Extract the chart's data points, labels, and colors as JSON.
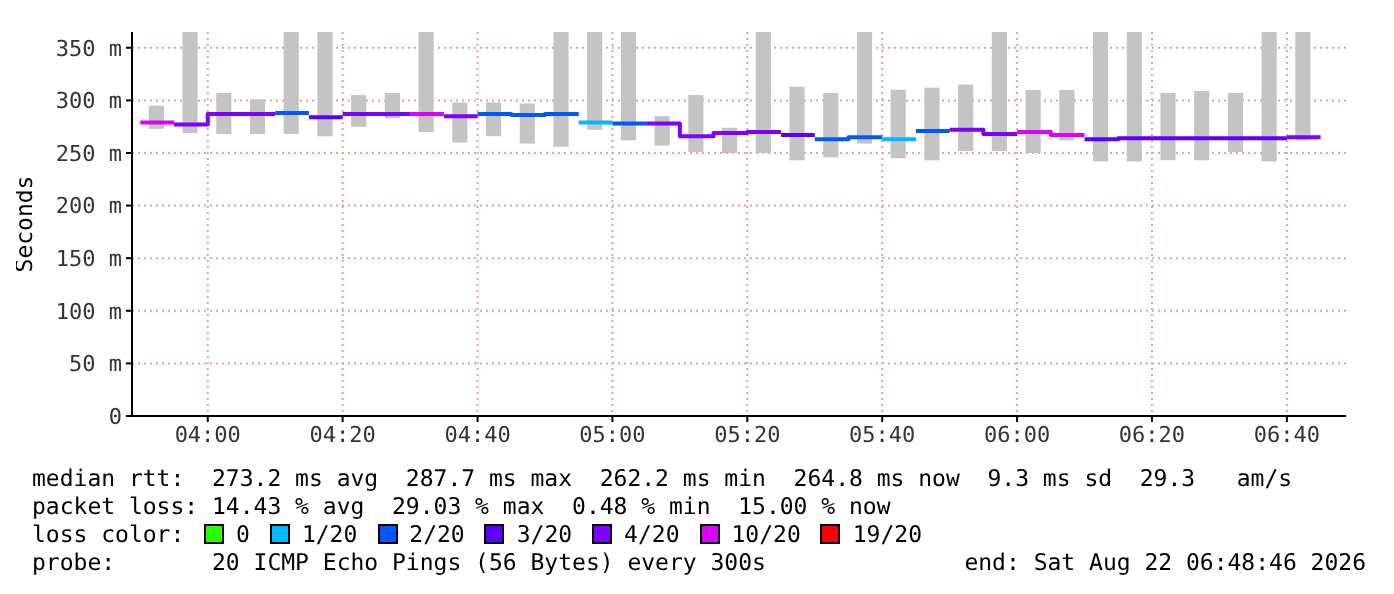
{
  "chart_data": {
    "type": "line",
    "ylabel": "Seconds",
    "legend_title": "loss color:",
    "legend": "bottom",
    "grid": true,
    "xlim": [
      3.8128,
      6.8128
    ],
    "xticks": [
      {
        "value": 4,
        "label": "04:00"
      },
      {
        "value": 4.3333,
        "label": "04:20"
      },
      {
        "value": 4.6667,
        "label": "04:40"
      },
      {
        "value": 5,
        "label": "05:00"
      },
      {
        "value": 5.3333,
        "label": "05:20"
      },
      {
        "value": 5.6667,
        "label": "05:40"
      },
      {
        "value": 6,
        "label": "06:00"
      },
      {
        "value": 6.3333,
        "label": "06:20"
      },
      {
        "value": 6.6667,
        "label": "06:40"
      }
    ],
    "ylim": [
      0,
      365
    ],
    "yticks": [
      0,
      {
        "value": 50,
        "label": "50 m"
      },
      {
        "value": 100,
        "label": "100 m"
      },
      {
        "value": 150,
        "label": "150 m"
      },
      {
        "value": 200,
        "label": "200 m"
      },
      {
        "value": 250,
        "label": "250 m"
      },
      {
        "value": 300,
        "label": "300 m"
      },
      {
        "value": 350,
        "label": "350 m"
      }
    ],
    "series": [
      {
        "type": "bar",
        "color": "#c4c4c4",
        "x": [
          3.875,
          3.9583,
          4.0417,
          4.125,
          4.2083,
          4.2917,
          4.375,
          4.4583,
          4.5417,
          4.625,
          4.7083,
          4.7917,
          4.875,
          4.9583,
          5.0417,
          5.125,
          5.2083,
          5.2917,
          5.375,
          5.4583,
          5.5417,
          5.625,
          5.7083,
          5.7917,
          5.875,
          5.9583,
          6.0417,
          6.125,
          6.2083,
          6.2917,
          6.375,
          6.4583,
          6.5417,
          6.625,
          6.7083
        ],
        "base": [
          273,
          269,
          268,
          268,
          268,
          266,
          275,
          283,
          270,
          260,
          266,
          259,
          256,
          272,
          262,
          257,
          251,
          250,
          250,
          243,
          246,
          259,
          245,
          243,
          252,
          252,
          250,
          262,
          242,
          242,
          243,
          243,
          251,
          242,
          262
        ],
        "values": [
          22,
          96,
          39,
          33,
          97,
          99,
          30,
          24,
          95,
          38,
          32,
          38,
          109,
          93,
          103,
          28,
          54,
          24,
          115,
          70,
          61,
          106,
          65,
          69,
          63,
          113,
          60,
          48,
          123,
          123,
          64,
          66,
          56,
          123,
          103
        ]
      },
      {
        "name": "0",
        "color": "#26ff00"
      },
      {
        "name": "1/20",
        "color": "#00b8ff",
        "x": [
          4.9167,
          5.0,
          5.6667,
          5.75
        ],
        "values": [
          279,
          279,
          263,
          263
        ]
      },
      {
        "name": "2/20",
        "color": "#0059ff",
        "x": [
          4.1667,
          4.25,
          4.6667,
          4.75,
          4.75,
          4.8333,
          4.8333,
          4.9167,
          5.0,
          5.0833,
          5.5,
          5.5833,
          5.5833,
          5.6667,
          5.75,
          5.8333
        ],
        "values": [
          288,
          288,
          287,
          287,
          286,
          286,
          287,
          287,
          278,
          278,
          263,
          263,
          265,
          265,
          271,
          271
        ]
      },
      {
        "name": "3/20",
        "color": "#5e00ff",
        "x": [
          4.25,
          4.3333,
          5.4167,
          5.5,
          6.1667,
          6.25,
          6.25,
          6.3333,
          6.3333,
          6.4167,
          6.4167,
          6.5,
          6.5,
          6.5833,
          6.5833,
          6.6667
        ],
        "values": [
          284,
          284,
          267,
          267,
          263,
          263,
          264,
          264,
          264,
          264,
          264,
          264,
          264,
          264,
          264,
          264
        ]
      },
      {
        "name": "4/20",
        "color": "#7e00ff",
        "x": [
          3.9167,
          4.0,
          4.0,
          4.0833,
          4.0833,
          4.1667,
          4.3333,
          4.4167,
          4.4167,
          4.5,
          4.5833,
          4.6667,
          5.0833,
          5.1667,
          5.1667,
          5.25,
          5.25,
          5.3333,
          5.3333,
          5.4167,
          5.8333,
          5.9167,
          5.9167,
          6.0,
          6.6667,
          6.75
        ],
        "values": [
          277,
          277,
          287,
          287,
          287,
          287,
          287,
          287,
          287,
          287,
          285,
          285,
          278,
          278,
          266,
          266,
          269,
          269,
          270,
          270,
          272,
          272,
          268,
          268,
          265,
          265
        ]
      },
      {
        "name": "10/20",
        "color": "#dd00ff",
        "x": [
          3.8333,
          3.9167,
          4.5,
          4.5833,
          6.0,
          6.0833,
          6.0833,
          6.1667
        ],
        "values": [
          279,
          279,
          287,
          287,
          270,
          270,
          267,
          267
        ]
      },
      {
        "name": "19/20",
        "color": "#ff0000"
      }
    ],
    "annotations": [
      "median rtt:  273.2 ms avg  287.7 ms max  262.2 ms min  264.8 ms now  9.3 ms sd  29.3   am/s",
      "packet loss: 14.43 % avg  29.03 % max  0.48 % min  15.00 % now",
      "probe:       20 ICMP Echo Pings (56 Bytes) every 300s",
      "end: Sat Aug 22 06:48:46 2026"
    ]
  }
}
